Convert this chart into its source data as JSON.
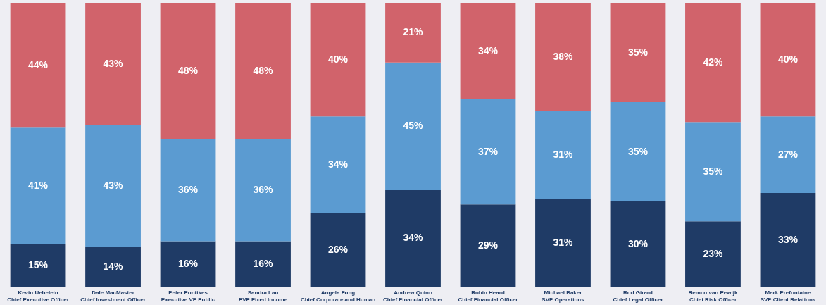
{
  "chart_data": {
    "type": "bar",
    "stacked": true,
    "legend": false,
    "tick_labels": "x",
    "categories": [
      "Kevin Uebelein\nChief Executive Officer",
      "Dale MacMaster\nChief Investment Officer",
      "Peter Pontikes\nExecutive VP Public",
      "Sandra Lau\nEVP Fixed Income",
      "Angela Fong\nChief Corporate and Human",
      "Andrew Quinn\nChief Financial Officer",
      "Robin Heard\nChief Financial Officer",
      "Michael Baker\nSVP Operations",
      "Rod Girard\nChief Legal Officer",
      "Remco van Eewijk\nChief Risk Officer",
      "Mark Prefontaine\nSVP Client Relations"
    ],
    "series": [
      {
        "color": "#1f3b66",
        "values": [
          15,
          14,
          16,
          16,
          26,
          34,
          29,
          31,
          30,
          23,
          33
        ],
        "value_labels": [
          "15%",
          "14%",
          "16%",
          "16%",
          "26%",
          "34%",
          "29%",
          "31%",
          "30%",
          "23%",
          "33%"
        ]
      },
      {
        "color": "#5b9bd1",
        "values": [
          41,
          43,
          36,
          36,
          34,
          45,
          37,
          31,
          35,
          35,
          27
        ],
        "value_labels": [
          "41%",
          "43%",
          "36%",
          "36%",
          "34%",
          "45%",
          "37%",
          "31%",
          "35%",
          "35%",
          "27%"
        ]
      },
      {
        "color": "#d1636b",
        "values": [
          44,
          43,
          48,
          48,
          40,
          21,
          34,
          38,
          35,
          42,
          40
        ],
        "value_labels": [
          "44%",
          "43%",
          "48%",
          "48%",
          "40%",
          "21%",
          "34%",
          "38%",
          "35%",
          "42%",
          "40%"
        ]
      }
    ]
  }
}
